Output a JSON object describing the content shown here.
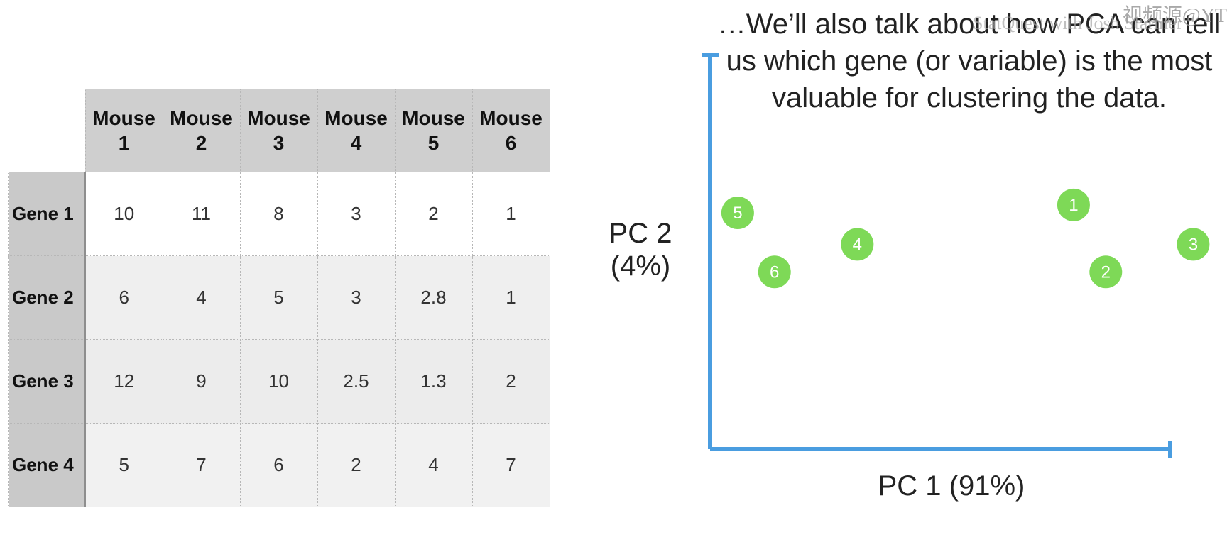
{
  "table": {
    "columns": [
      "Mouse 1",
      "Mouse 2",
      "Mouse 3",
      "Mouse 4",
      "Mouse 5",
      "Mouse 6"
    ],
    "rows": [
      {
        "label": "Gene 1",
        "values": [
          "10",
          "11",
          "8",
          "3",
          "2",
          "1"
        ]
      },
      {
        "label": "Gene 2",
        "values": [
          "6",
          "4",
          "5",
          "3",
          "2.8",
          "1"
        ]
      },
      {
        "label": "Gene 3",
        "values": [
          "12",
          "9",
          "10",
          "2.5",
          "1.3",
          "2"
        ]
      },
      {
        "label": "Gene 4",
        "values": [
          "5",
          "7",
          "6",
          "2",
          "4",
          "7"
        ]
      }
    ]
  },
  "caption": "…We’ll also talk about how PCA can tell us which gene (or variable) is the most valuable for clustering the data.",
  "watermark": "视频源@YT",
  "watermark_overlay": "StatQuest with Josh Starmer",
  "chart_data": {
    "type": "scatter",
    "xlabel": "PC 1 (91%)",
    "ylabel_lines": [
      "PC 2",
      "(4%)"
    ],
    "axis_color": "#4a9de0",
    "point_color": "#7ed957",
    "points": [
      {
        "label": "1",
        "x": 0.79,
        "y": 0.62
      },
      {
        "label": "2",
        "x": 0.86,
        "y": 0.45
      },
      {
        "label": "3",
        "x": 1.05,
        "y": 0.52
      },
      {
        "label": "4",
        "x": 0.32,
        "y": 0.52
      },
      {
        "label": "5",
        "x": 0.06,
        "y": 0.6
      },
      {
        "label": "6",
        "x": 0.14,
        "y": 0.45
      }
    ]
  }
}
